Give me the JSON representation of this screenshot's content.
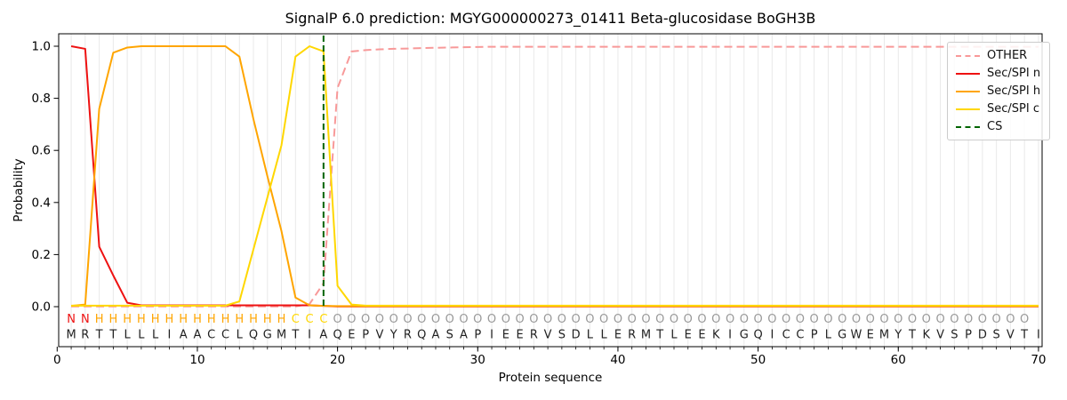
{
  "chart_data": {
    "type": "line",
    "title": "SignalP 6.0 prediction: MGYG000000273_01411 Beta-glucosidase BoGH3B",
    "xlabel": "Protein sequence",
    "ylabel": "Probability",
    "xticks": [
      0,
      10,
      20,
      30,
      40,
      50,
      60,
      70
    ],
    "yticks": [
      0.0,
      0.2,
      0.4,
      0.6,
      0.8,
      1.0
    ],
    "xlim": [
      0,
      70.4
    ],
    "ylim": [
      -0.155,
      1.048
    ],
    "grid": "vertical line at every residue position",
    "legend_position": "upper right",
    "positions_start": 1,
    "series": [
      {
        "name": "OTHER",
        "color": "#f89999",
        "style": "dashed",
        "values": [
          0.001,
          0.001,
          0.001,
          0.001,
          0.001,
          0.001,
          0.001,
          0.001,
          0.001,
          0.001,
          0.001,
          0.001,
          0.001,
          0.001,
          0.001,
          0.001,
          0.001,
          0.01,
          0.09,
          0.84,
          0.98,
          0.985,
          0.988,
          0.99,
          0.991,
          0.993,
          0.994,
          0.995,
          0.996,
          0.997,
          0.998,
          0.998,
          0.998,
          0.998,
          0.998,
          0.998,
          0.998,
          0.998,
          0.998,
          0.998,
          0.998,
          0.998,
          0.998,
          0.998,
          0.998,
          0.998,
          0.998,
          0.998,
          0.998,
          0.998,
          0.998,
          0.998,
          0.998,
          0.998,
          0.998,
          0.998,
          0.998,
          0.998,
          0.998,
          0.998,
          0.998,
          0.998,
          0.998,
          0.998,
          0.998,
          0.998,
          0.998,
          0.998,
          0.998,
          0.998
        ]
      },
      {
        "name": "Sec/SPI n",
        "color": "#ee1111",
        "style": "solid",
        "values": [
          1.0,
          0.99,
          0.23,
          0.12,
          0.015,
          0.005,
          0.005,
          0.005,
          0.005,
          0.005,
          0.005,
          0.005,
          0.005,
          0.005,
          0.005,
          0.005,
          0.005,
          0.005,
          0.003,
          0.001,
          0.001,
          0.001,
          0.001,
          0.001,
          0.001,
          0.001,
          0.001,
          0.001,
          0.001,
          0.001,
          0.001,
          0.001,
          0.001,
          0.001,
          0.001,
          0.001,
          0.001,
          0.001,
          0.001,
          0.001,
          0.001,
          0.001,
          0.001,
          0.001,
          0.001,
          0.001,
          0.001,
          0.001,
          0.001,
          0.001,
          0.001,
          0.001,
          0.001,
          0.001,
          0.001,
          0.001,
          0.001,
          0.001,
          0.001,
          0.001,
          0.001,
          0.001,
          0.001,
          0.001,
          0.001,
          0.001,
          0.001,
          0.001,
          0.001,
          0.001
        ]
      },
      {
        "name": "Sec/SPI h",
        "color": "#ffa500",
        "style": "solid",
        "values": [
          0.003,
          0.008,
          0.76,
          0.975,
          0.995,
          1.0,
          1.0,
          1.0,
          1.0,
          1.0,
          1.0,
          1.0,
          0.96,
          0.72,
          0.5,
          0.29,
          0.035,
          0.005,
          0.003,
          0.002,
          0.002,
          0.002,
          0.002,
          0.002,
          0.002,
          0.002,
          0.002,
          0.002,
          0.002,
          0.002,
          0.002,
          0.002,
          0.002,
          0.002,
          0.002,
          0.002,
          0.002,
          0.002,
          0.002,
          0.002,
          0.002,
          0.002,
          0.002,
          0.002,
          0.002,
          0.002,
          0.002,
          0.002,
          0.002,
          0.002,
          0.002,
          0.002,
          0.002,
          0.002,
          0.002,
          0.002,
          0.002,
          0.002,
          0.002,
          0.002,
          0.002,
          0.002,
          0.002,
          0.002,
          0.002,
          0.002,
          0.002,
          0.002,
          0.002,
          0.002
        ]
      },
      {
        "name": "Sec/SPI c",
        "color": "#ffd700",
        "style": "solid",
        "values": [
          0.004,
          0.004,
          0.004,
          0.004,
          0.004,
          0.004,
          0.004,
          0.004,
          0.004,
          0.004,
          0.004,
          0.004,
          0.02,
          0.22,
          0.42,
          0.62,
          0.96,
          1.0,
          0.98,
          0.08,
          0.008,
          0.004,
          0.004,
          0.004,
          0.004,
          0.004,
          0.004,
          0.004,
          0.004,
          0.004,
          0.004,
          0.004,
          0.004,
          0.004,
          0.004,
          0.004,
          0.004,
          0.004,
          0.004,
          0.004,
          0.004,
          0.004,
          0.004,
          0.004,
          0.004,
          0.004,
          0.004,
          0.004,
          0.004,
          0.004,
          0.004,
          0.004,
          0.004,
          0.004,
          0.004,
          0.004,
          0.004,
          0.004,
          0.004,
          0.004,
          0.004,
          0.004,
          0.004,
          0.004,
          0.004,
          0.004,
          0.004,
          0.004,
          0.004,
          0.004
        ]
      }
    ],
    "cs_line": {
      "name": "CS",
      "x": 19,
      "color": "#006400",
      "style": "dashed"
    },
    "residue_type_row": {
      "labels": "NNHHHHHHHHHHHHHHCCCOOOOOOOOOOOOOOOOOOOOOOOOOOOOOOOOOOOOOOOOOOOOOOOOOO",
      "colors": {
        "N": "#ee1111",
        "H": "#ffa500",
        "C": "#ffd700",
        "O": "#999999"
      }
    },
    "sequence": "MRTTLLLIAACCLQGMTIAQEPVYRQASAPIEERVSDLLERMTLEEKIGQICCPLGWEMYTKVSPDSVTI",
    "sequence_color": "#1f1f1f",
    "legend": {
      "entries": [
        {
          "label": "OTHER",
          "color": "#f89999",
          "style": "dashed"
        },
        {
          "label": "Sec/SPI n",
          "color": "#ee1111",
          "style": "solid"
        },
        {
          "label": "Sec/SPI h",
          "color": "#ffa500",
          "style": "solid"
        },
        {
          "label": "Sec/SPI c",
          "color": "#ffd700",
          "style": "solid"
        },
        {
          "label": "CS",
          "color": "#006400",
          "style": "dashed"
        }
      ]
    }
  }
}
